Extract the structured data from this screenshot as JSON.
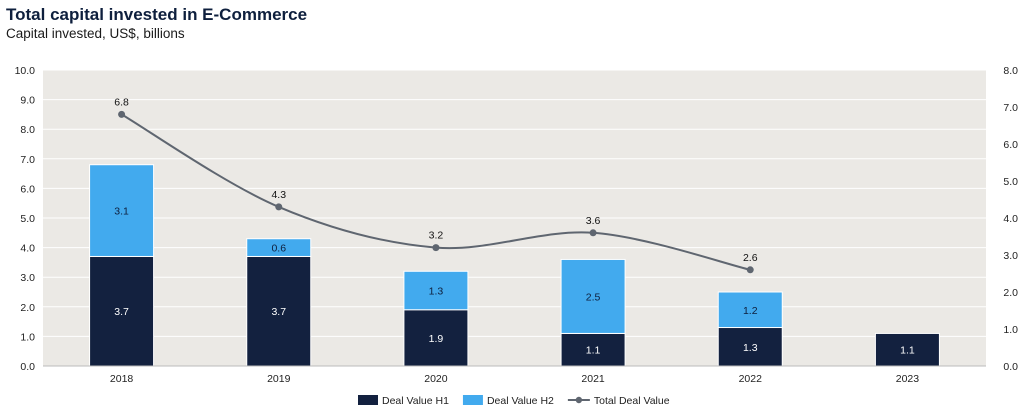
{
  "header": {
    "title": "Total capital invested in E-Commerce",
    "subtitle": "Capital invested, US$, billions"
  },
  "chart_data": {
    "type": "bar",
    "stacked": true,
    "categories": [
      "2018",
      "2019",
      "2020",
      "2021",
      "2022",
      "2023"
    ],
    "series": [
      {
        "name": "Deal Value H1",
        "type": "bar",
        "axis": "left",
        "color": "#13213f",
        "values": [
          3.7,
          3.7,
          1.9,
          1.1,
          1.3,
          1.1
        ],
        "labels": [
          "3.7",
          "3.7",
          "1.9",
          "1.1",
          "1.3",
          "1.1"
        ]
      },
      {
        "name": "Deal Value H2",
        "type": "bar",
        "axis": "left",
        "color": "#42aaee",
        "values": [
          3.1,
          0.6,
          1.3,
          2.5,
          1.2,
          null
        ],
        "labels": [
          "3.1",
          "0.6",
          "1.3",
          "2.5",
          "1.2",
          null
        ]
      },
      {
        "name": "Total Deal Value",
        "type": "line",
        "axis": "right",
        "color": "#5f6670",
        "values": [
          6.8,
          4.3,
          3.2,
          3.6,
          2.6,
          null
        ],
        "labels": [
          "6.8",
          "4.3",
          "3.2",
          "3.6",
          "2.6",
          null
        ]
      }
    ],
    "y_left": {
      "min": 0,
      "max": 10,
      "ticks": [
        "0.0",
        "1.0",
        "2.0",
        "3.0",
        "4.0",
        "5.0",
        "6.0",
        "7.0",
        "8.0",
        "9.0",
        "10.0"
      ]
    },
    "y_right": {
      "min": 0,
      "max": 8,
      "ticks": [
        "0.0",
        "1.0",
        "2.0",
        "3.0",
        "4.0",
        "5.0",
        "6.0",
        "7.0",
        "8.0"
      ]
    },
    "grid": true,
    "plot_background": "#ebe9e5",
    "grid_color": "#ffffff",
    "legend_position": "bottom-center"
  }
}
